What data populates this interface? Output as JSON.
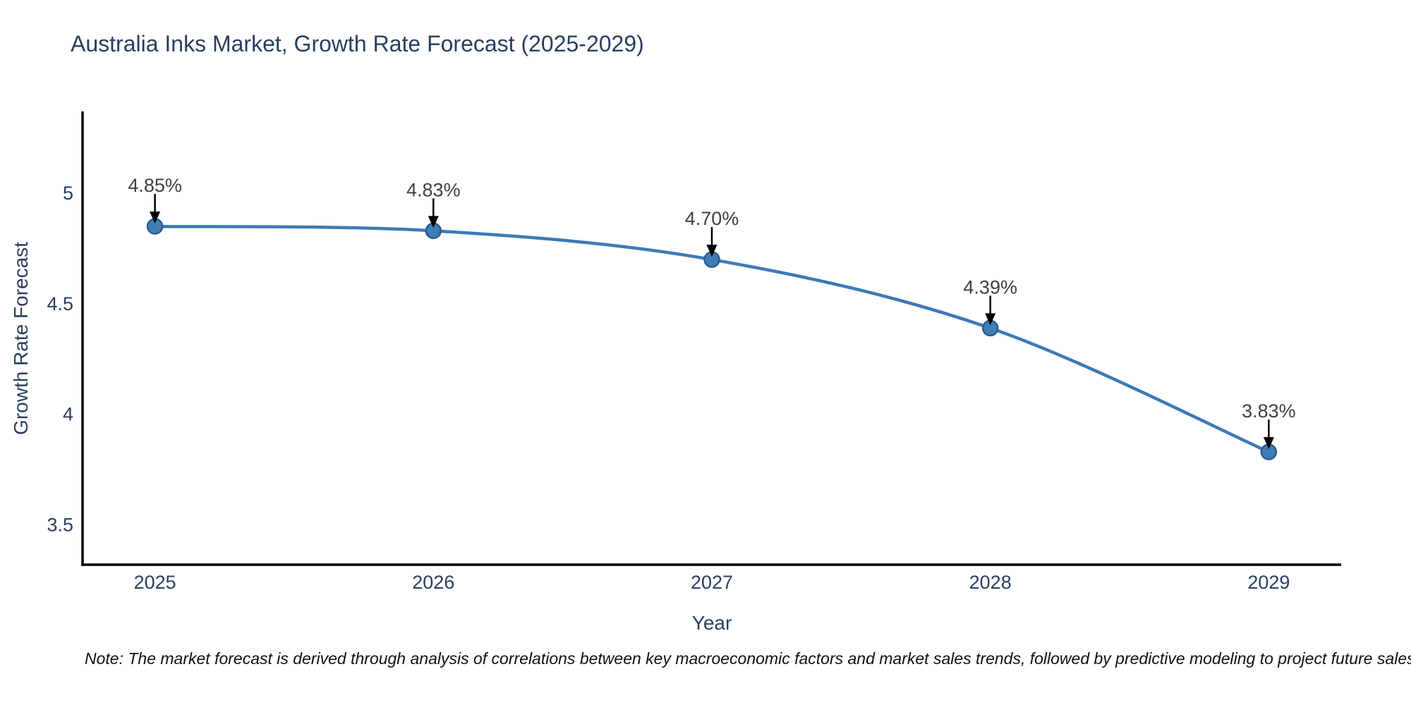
{
  "chart_data": {
    "type": "line",
    "title": "Australia Inks Market, Growth Rate Forecast (2025-2029)",
    "xlabel": "Year",
    "ylabel": "Growth Rate Forecast",
    "x": [
      2025,
      2026,
      2027,
      2028,
      2029
    ],
    "y": [
      4.85,
      4.83,
      4.7,
      4.39,
      3.83
    ],
    "point_labels": [
      "4.85%",
      "4.83%",
      "4.70%",
      "4.39%",
      "3.83%"
    ],
    "xtick_labels": [
      "2025",
      "2026",
      "2027",
      "2028",
      "2029"
    ],
    "ytick_labels": [
      "3.5",
      "4",
      "4.5",
      "5"
    ],
    "ytick_values": [
      3.5,
      4,
      4.5,
      5
    ],
    "xlim": [
      2024.74,
      2029.26
    ],
    "ylim": [
      3.32,
      5.37
    ],
    "grid": false,
    "legend": false,
    "line_shape": "spline",
    "colors": {
      "line": "#3d7ab5",
      "marker_fill": "#3f7db5",
      "marker_edge": "#2a5d8c",
      "axis": "#000000",
      "tick_text": "#2a3f5f",
      "annotation_text": "#404040",
      "arrow": "#000000"
    },
    "note": "Note: The market forecast is derived through analysis of correlations between key macroeconomic factors and market sales trends, followed by predictive modeling to project future sales"
  }
}
